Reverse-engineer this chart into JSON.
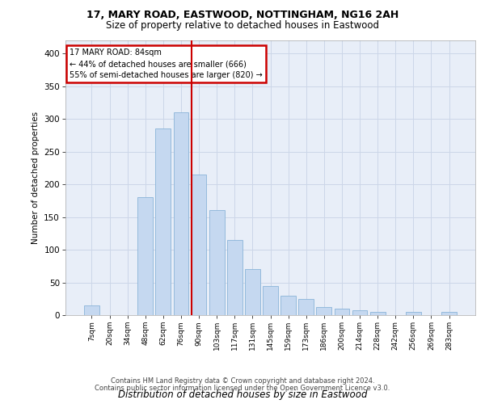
{
  "title1": "17, MARY ROAD, EASTWOOD, NOTTINGHAM, NG16 2AH",
  "title2": "Size of property relative to detached houses in Eastwood",
  "xlabel": "Distribution of detached houses by size in Eastwood",
  "ylabel": "Number of detached properties",
  "categories": [
    "7sqm",
    "20sqm",
    "34sqm",
    "48sqm",
    "62sqm",
    "76sqm",
    "90sqm",
    "103sqm",
    "117sqm",
    "131sqm",
    "145sqm",
    "159sqm",
    "173sqm",
    "186sqm",
    "200sqm",
    "214sqm",
    "228sqm",
    "242sqm",
    "256sqm",
    "269sqm",
    "283sqm"
  ],
  "values": [
    15,
    0,
    0,
    180,
    285,
    310,
    215,
    160,
    115,
    70,
    45,
    30,
    25,
    12,
    10,
    8,
    5,
    0,
    5,
    0,
    5
  ],
  "bar_color": "#c5d8f0",
  "bar_edge_color": "#8ab4d8",
  "grid_color": "#ccd6e8",
  "bg_color": "#e8eef8",
  "vline_x_bar_idx": 5.57,
  "annotation_line1": "17 MARY ROAD: 84sqm",
  "annotation_line2": "← 44% of detached houses are smaller (666)",
  "annotation_line3": "55% of semi-detached houses are larger (820) →",
  "annotation_box_color": "#ffffff",
  "annotation_box_edge": "#cc0000",
  "vline_color": "#cc0000",
  "ylim_max": 420,
  "yticks": [
    0,
    50,
    100,
    150,
    200,
    250,
    300,
    350,
    400
  ],
  "footer1": "Contains HM Land Registry data © Crown copyright and database right 2024.",
  "footer2": "Contains public sector information licensed under the Open Government Licence v3.0."
}
